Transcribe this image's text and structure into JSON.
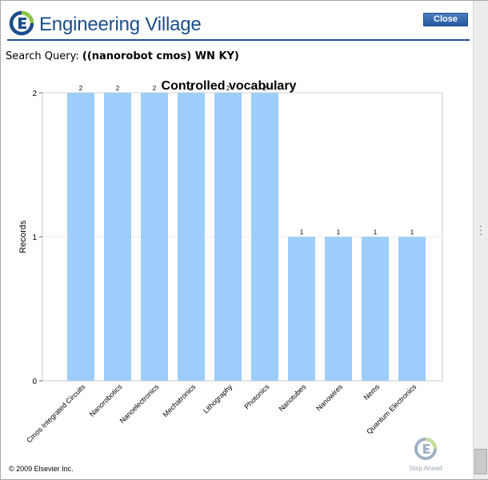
{
  "header": {
    "brand": "Engineering Village",
    "close_label": "Close"
  },
  "query": {
    "label": "Search Query:",
    "value": "((nanorobot cmos) WN KY)"
  },
  "chart_data": {
    "type": "bar",
    "title": "Controlled vocabulary",
    "ylabel": "Records",
    "xlabel": "",
    "ylim": [
      0,
      2
    ],
    "yticks": [
      0,
      1,
      2
    ],
    "grid": true,
    "categories": [
      "Cmos Integrated Circuits",
      "Nanorobotics",
      "Nanoelectronics",
      "Mechatronics",
      "Lithography",
      "Photonics",
      "Nanotubes",
      "Nanowires",
      "Nems",
      "Quantum Electronics"
    ],
    "values": [
      2,
      2,
      2,
      2,
      2,
      2,
      1,
      1,
      1,
      1
    ],
    "bar_color": "#9ecdfb"
  },
  "footer": {
    "copyright": "© 2009 Elsevier Inc.",
    "stamp": "Step Ahead"
  }
}
